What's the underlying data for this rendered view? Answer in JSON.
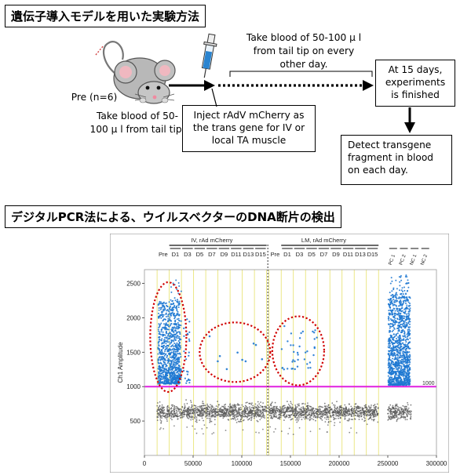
{
  "top": {
    "title": "遺伝子導入モデルを用いた実験方法",
    "pre_label": "Pre (n=6)",
    "take_blood_pre": [
      "Take blood of 50-",
      "100 μ l from tail tip."
    ],
    "take_blood_every": [
      "Take blood of 50-100 μ l",
      "from tail tip on every",
      "other day."
    ],
    "inject": [
      "Inject rAdV mCherry as",
      "the trans gene for IV or",
      "local TA muscle"
    ],
    "finished": [
      "At 15 days,",
      "experiments",
      "is finished"
    ],
    "detect": [
      "Detect transgene",
      "fragment in blood",
      "on each day."
    ]
  },
  "bottom": {
    "title": "デジタルPCR法による、ウイルスベクターのDNA断片の検出"
  },
  "chart_data": {
    "type": "scatter",
    "ylabel": "Ch1 Amplitude",
    "xlim": [
      0,
      300000
    ],
    "ylim": [
      0,
      2700
    ],
    "xticks": [
      "0",
      "50000",
      "100000",
      "150000",
      "200000",
      "250000",
      "300000"
    ],
    "yticks": [
      "500",
      "1000",
      "1500",
      "2000",
      "2500"
    ],
    "threshold": 1000,
    "threshold_label": "1000",
    "group_left": "IV, rAd mCherry",
    "group_right": "LM, rAd mCherry",
    "left_wells": [
      "Pre",
      "D1",
      "D3",
      "D5",
      "D7",
      "D9",
      "D11",
      "D13",
      "D15"
    ],
    "right_wells": [
      "Pre",
      "D1",
      "D3",
      "D5",
      "D7",
      "D9",
      "D11",
      "D13",
      "D15"
    ],
    "control_wells": [
      "PC 1",
      "PC 2",
      "NC 1",
      "NC 2"
    ],
    "colors": {
      "positive": "#1e78d2",
      "negative": "#5a5a5a",
      "threshold": "#e020e0",
      "circle": "#d00000",
      "grid": "#e6e16a"
    }
  }
}
